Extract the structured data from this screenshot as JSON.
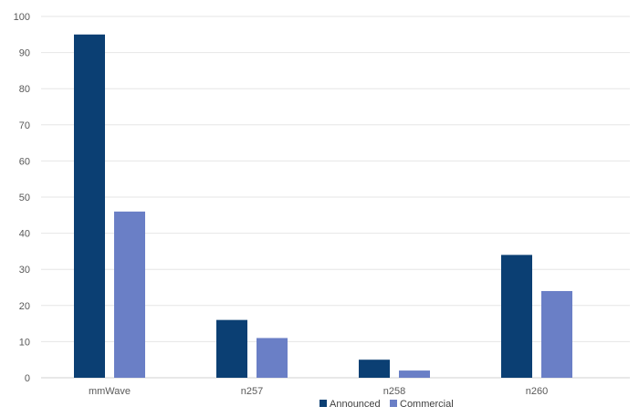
{
  "chart_data": {
    "type": "bar",
    "categories": [
      "mmWave",
      "n257",
      "n258",
      "n260"
    ],
    "series": [
      {
        "name": "Announced",
        "values": [
          95,
          16,
          5,
          34
        ],
        "color": "#0b3f73"
      },
      {
        "name": "Commercial",
        "values": [
          46,
          11,
          2,
          24
        ],
        "color": "#6a7fc6"
      }
    ],
    "ylim": [
      0,
      100
    ],
    "yticks": [
      0,
      10,
      20,
      30,
      40,
      50,
      60,
      70,
      80,
      90,
      100
    ],
    "grid": true,
    "legend_position": "bottom"
  }
}
